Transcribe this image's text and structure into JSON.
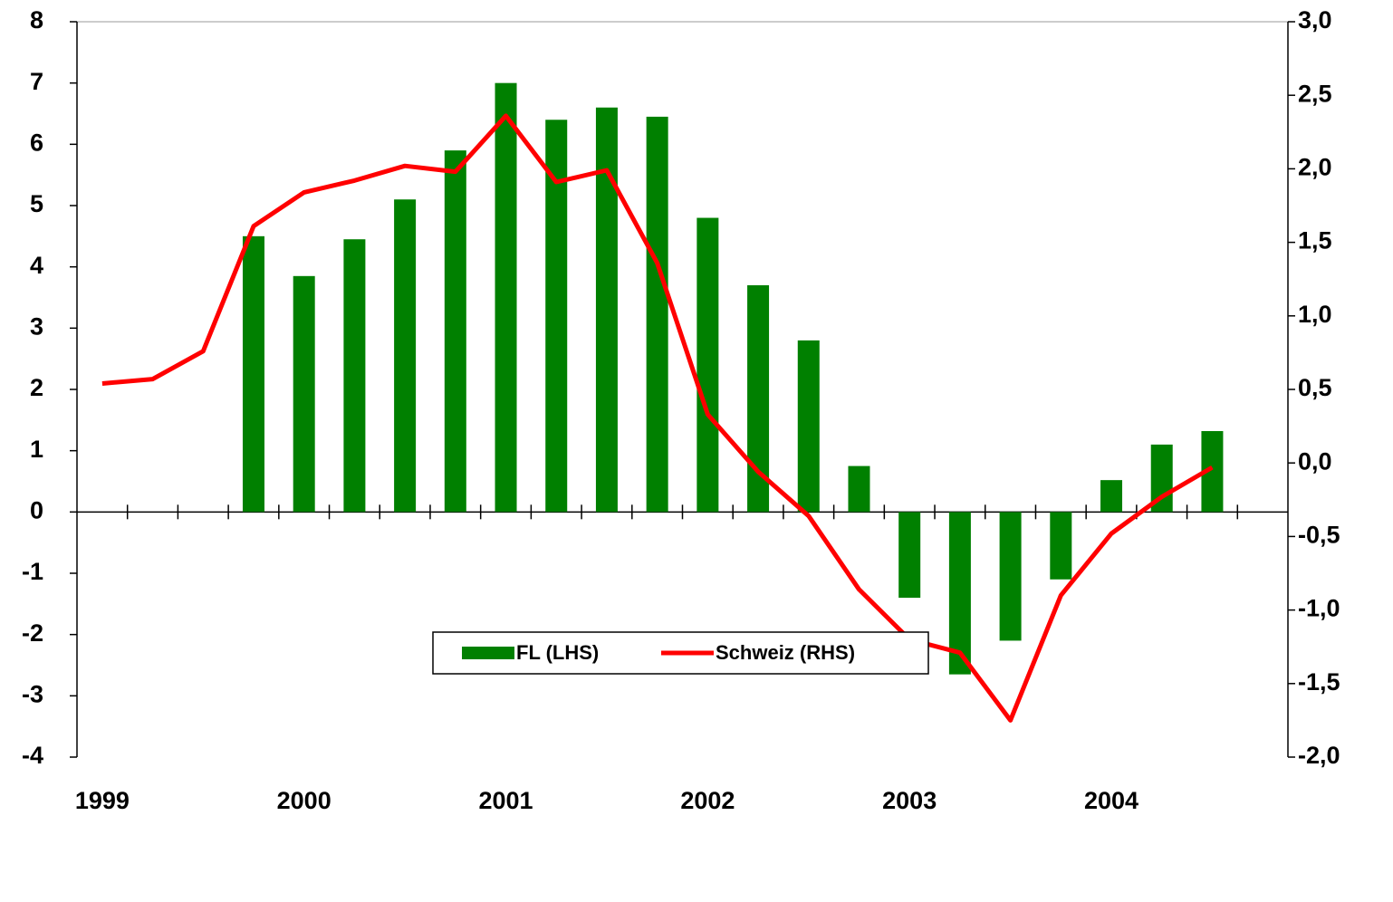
{
  "chart_data": {
    "type": "bar-line",
    "categories": [
      "1999",
      null,
      null,
      null,
      "2000",
      null,
      null,
      null,
      "2001",
      null,
      null,
      null,
      "2002",
      null,
      null,
      null,
      "2003",
      null,
      null,
      null,
      "2004",
      null,
      null,
      null
    ],
    "series": [
      {
        "name": "FL (LHS)",
        "type": "bar",
        "color": "#008000",
        "axis": "y",
        "values": [
          null,
          null,
          null,
          4.5,
          3.85,
          4.45,
          5.1,
          5.9,
          7.0,
          6.4,
          6.6,
          6.45,
          4.8,
          3.7,
          2.8,
          0.75,
          -1.4,
          -2.65,
          -2.1,
          -1.1,
          0.52,
          1.1,
          1.32,
          null
        ]
      },
      {
        "name": "Schweiz (RHS)",
        "type": "line",
        "color": "#ff0000",
        "axis": "y2",
        "values": [
          0.54,
          0.57,
          0.76,
          1.61,
          1.84,
          1.92,
          2.02,
          1.98,
          2.36,
          1.91,
          1.99,
          1.36,
          0.33,
          -0.06,
          -0.36,
          -0.86,
          -1.2,
          -1.29,
          -1.75,
          -0.9,
          -0.48,
          -0.23,
          -0.03,
          null
        ]
      }
    ],
    "ylim": [
      -4,
      8
    ],
    "yticks": [
      -4,
      -3,
      -2,
      -1,
      0,
      1,
      2,
      3,
      4,
      5,
      6,
      7,
      8
    ],
    "y2lim": [
      -2,
      3
    ],
    "y2ticks": [
      {
        "value": -2,
        "label": "-2,0"
      },
      {
        "value": -1.5,
        "label": "-1,5"
      },
      {
        "value": -1,
        "label": "-1,0"
      },
      {
        "value": -0.5,
        "label": "-0,5"
      },
      {
        "value": 0,
        "label": "0,0"
      },
      {
        "value": 0.5,
        "label": "0,5"
      },
      {
        "value": 1,
        "label": "1,0"
      },
      {
        "value": 1.5,
        "label": "1,5"
      },
      {
        "value": 2,
        "label": "2,0"
      },
      {
        "value": 2.5,
        "label": "2,5"
      },
      {
        "value": 3,
        "label": "3,0"
      }
    ],
    "legend": "bottom"
  }
}
